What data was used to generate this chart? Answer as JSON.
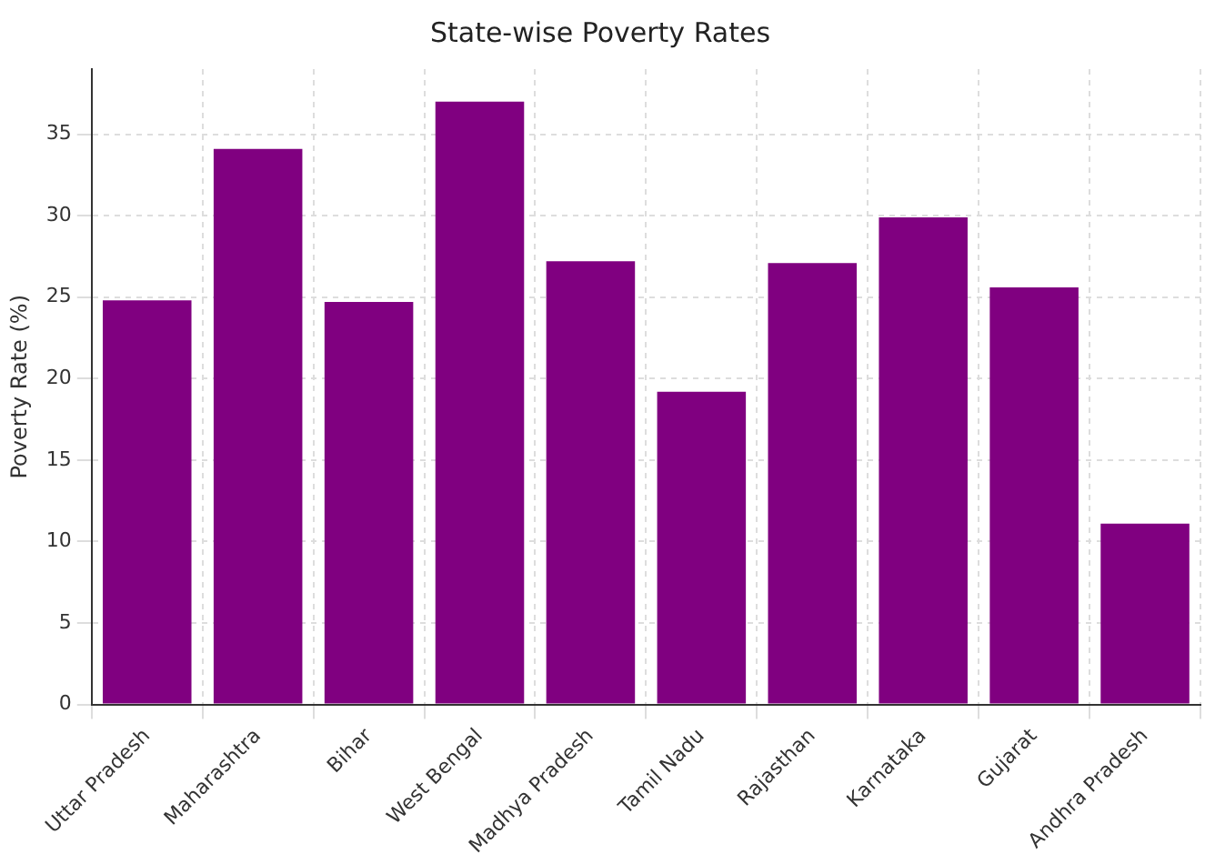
{
  "chart_data": {
    "type": "bar",
    "title": "State-wise Poverty Rates",
    "ylabel": "Poverty Rate (%)",
    "categories": [
      "Uttar Pradesh",
      "Maharashtra",
      "Bihar",
      "West Bengal",
      "Madhya Pradesh",
      "Tamil Nadu",
      "Rajasthan",
      "Karnataka",
      "Gujarat",
      "Andhra Pradesh"
    ],
    "values": [
      24.8,
      34.1,
      24.7,
      37.0,
      27.2,
      19.2,
      27.1,
      29.9,
      25.6,
      11.1
    ],
    "color": "#800080",
    "ylim": [
      0,
      39
    ],
    "yticks": [
      0,
      5,
      10,
      15,
      20,
      25,
      30,
      35
    ],
    "grid": true
  }
}
